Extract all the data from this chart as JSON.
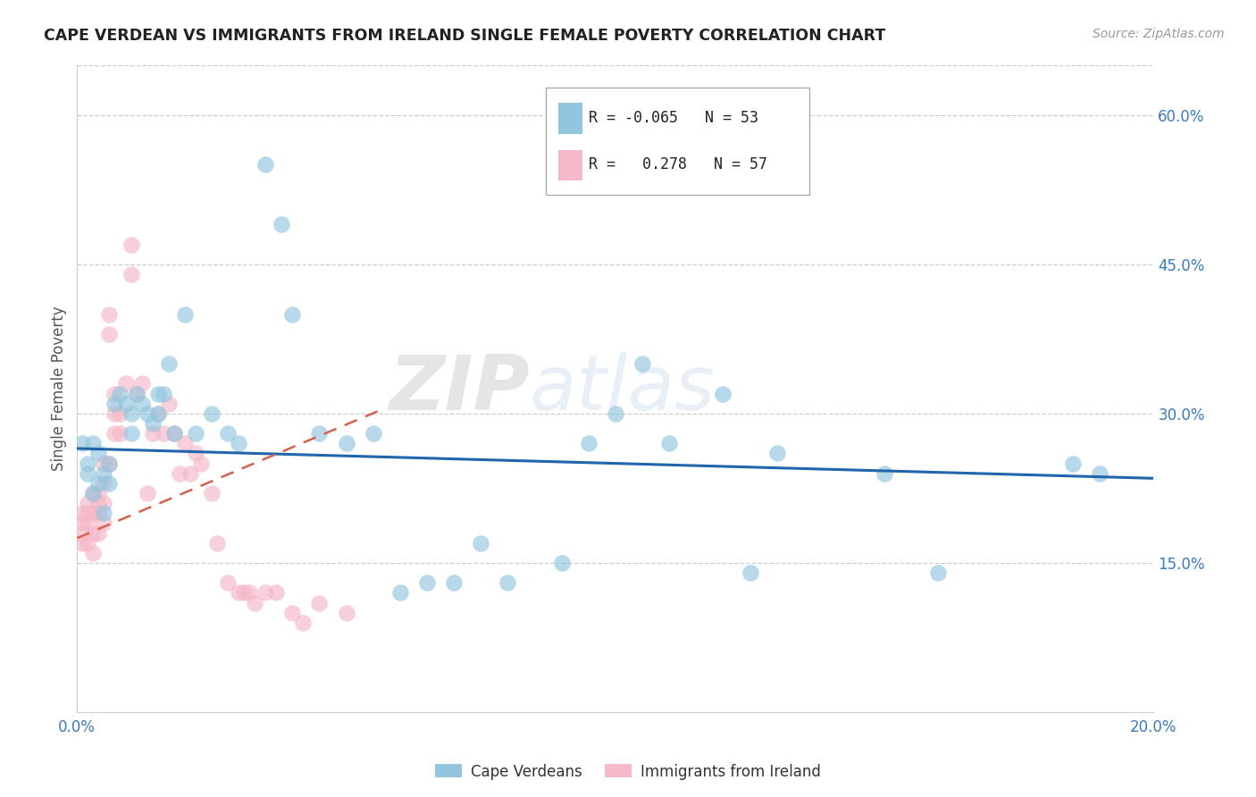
{
  "title": "CAPE VERDEAN VS IMMIGRANTS FROM IRELAND SINGLE FEMALE POVERTY CORRELATION CHART",
  "source": "Source: ZipAtlas.com",
  "ylabel": "Single Female Poverty",
  "xlim": [
    0.0,
    0.2
  ],
  "ylim": [
    0.0,
    0.65
  ],
  "xticks": [
    0.0,
    0.05,
    0.1,
    0.15,
    0.2
  ],
  "xtick_labels": [
    "0.0%",
    "",
    "",
    "",
    "20.0%"
  ],
  "ytick_vals_right": [
    0.15,
    0.3,
    0.45,
    0.6
  ],
  "ytick_labels_right": [
    "15.0%",
    "30.0%",
    "45.0%",
    "60.0%"
  ],
  "legend_blue_label": "Cape Verdeans",
  "legend_pink_label": "Immigrants from Ireland",
  "R_blue": "-0.065",
  "N_blue": "53",
  "R_pink": "0.278",
  "N_pink": "57",
  "blue_color": "#92c5de",
  "pink_color": "#f4b8c8",
  "blue_line_color": "#2166ac",
  "pink_line_color": "#d6604d",
  "watermark_zip": "ZIP",
  "watermark_atlas": "atlas",
  "blue_trend_x": [
    0.0,
    0.2
  ],
  "blue_trend_y": [
    0.265,
    0.235
  ],
  "pink_trend_x": [
    0.0,
    0.057
  ],
  "pink_trend_y": [
    0.175,
    0.305
  ],
  "blue_x": [
    0.001,
    0.002,
    0.002,
    0.003,
    0.003,
    0.004,
    0.004,
    0.005,
    0.005,
    0.006,
    0.006,
    0.007,
    0.008,
    0.009,
    0.01,
    0.01,
    0.011,
    0.012,
    0.013,
    0.014,
    0.015,
    0.015,
    0.016,
    0.017,
    0.018,
    0.02,
    0.022,
    0.025,
    0.028,
    0.03,
    0.035,
    0.038,
    0.04,
    0.045,
    0.05,
    0.055,
    0.06,
    0.065,
    0.07,
    0.075,
    0.08,
    0.09,
    0.095,
    0.1,
    0.105,
    0.11,
    0.12,
    0.125,
    0.13,
    0.15,
    0.16,
    0.185,
    0.19
  ],
  "blue_y": [
    0.27,
    0.25,
    0.24,
    0.27,
    0.22,
    0.26,
    0.23,
    0.24,
    0.2,
    0.25,
    0.23,
    0.31,
    0.32,
    0.31,
    0.3,
    0.28,
    0.32,
    0.31,
    0.3,
    0.29,
    0.32,
    0.3,
    0.32,
    0.35,
    0.28,
    0.4,
    0.28,
    0.3,
    0.28,
    0.27,
    0.55,
    0.49,
    0.4,
    0.28,
    0.27,
    0.28,
    0.12,
    0.13,
    0.13,
    0.17,
    0.13,
    0.15,
    0.27,
    0.3,
    0.35,
    0.27,
    0.32,
    0.14,
    0.26,
    0.24,
    0.14,
    0.25,
    0.24
  ],
  "pink_x": [
    0.001,
    0.001,
    0.001,
    0.001,
    0.002,
    0.002,
    0.002,
    0.002,
    0.003,
    0.003,
    0.003,
    0.003,
    0.004,
    0.004,
    0.004,
    0.004,
    0.005,
    0.005,
    0.005,
    0.005,
    0.006,
    0.006,
    0.006,
    0.007,
    0.007,
    0.007,
    0.008,
    0.008,
    0.009,
    0.01,
    0.01,
    0.011,
    0.012,
    0.013,
    0.014,
    0.015,
    0.016,
    0.017,
    0.018,
    0.019,
    0.02,
    0.021,
    0.022,
    0.023,
    0.025,
    0.026,
    0.028,
    0.03,
    0.031,
    0.032,
    0.033,
    0.035,
    0.037,
    0.04,
    0.042,
    0.045,
    0.05
  ],
  "pink_y": [
    0.2,
    0.19,
    0.18,
    0.17,
    0.21,
    0.2,
    0.19,
    0.17,
    0.22,
    0.2,
    0.18,
    0.16,
    0.22,
    0.21,
    0.2,
    0.18,
    0.25,
    0.23,
    0.21,
    0.19,
    0.4,
    0.38,
    0.25,
    0.32,
    0.3,
    0.28,
    0.3,
    0.28,
    0.33,
    0.47,
    0.44,
    0.32,
    0.33,
    0.22,
    0.28,
    0.3,
    0.28,
    0.31,
    0.28,
    0.24,
    0.27,
    0.24,
    0.26,
    0.25,
    0.22,
    0.17,
    0.13,
    0.12,
    0.12,
    0.12,
    0.11,
    0.12,
    0.12,
    0.1,
    0.09,
    0.11,
    0.1
  ]
}
